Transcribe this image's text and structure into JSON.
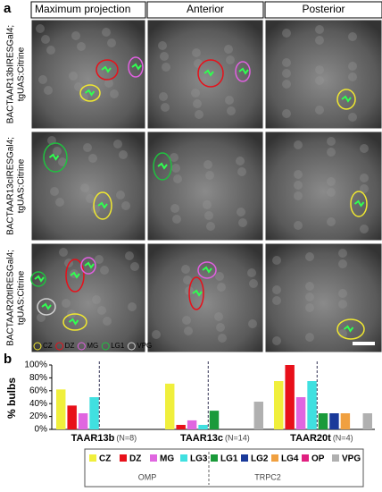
{
  "panel_a": {
    "label": "a",
    "columns": [
      "Maximum projection",
      "Anterior",
      "Posterior"
    ],
    "rows": [
      [
        "BACTAAR13bIRESGal4;",
        "tgUAS:Citrine"
      ],
      [
        "BACTAAR13cIRESGal4;",
        "tgUAS:Citrine"
      ],
      [
        "BACTAAR20tIRESGal4;",
        "tgUAS:Citrine"
      ]
    ],
    "legend": [
      {
        "label": "CZ",
        "color": "#f0e830"
      },
      {
        "label": "DZ",
        "color": "#e8101a"
      },
      {
        "label": "MG",
        "color": "#e060e0"
      },
      {
        "label": "LG1",
        "color": "#20c040"
      },
      {
        "label": "VPG",
        "color": "#d0d0d0"
      }
    ]
  },
  "chart_data": {
    "type": "bar",
    "label": "b",
    "ylabel": "% bulbs",
    "categories": [
      "TAAR13b",
      "TAAR13c",
      "TAAR20t"
    ],
    "category_notes": [
      "(N=8)",
      "(N=14)",
      "(N=4)"
    ],
    "ylim": [
      0,
      100
    ],
    "yticks": [
      {
        "value": 0,
        "label": "0%"
      },
      {
        "value": 20,
        "label": "20%"
      },
      {
        "value": 40,
        "label": "40%"
      },
      {
        "value": 60,
        "label": "60%"
      },
      {
        "value": 80,
        "label": "80%"
      },
      {
        "value": 100,
        "label": "100%"
      }
    ],
    "series": [
      {
        "name": "CZ",
        "color": "#f0ef3c",
        "values": [
          62,
          71,
          75
        ]
      },
      {
        "name": "DZ",
        "color": "#e8101a",
        "values": [
          37,
          7,
          100
        ]
      },
      {
        "name": "MG",
        "color": "#e066e0",
        "values": [
          25,
          14,
          50
        ]
      },
      {
        "name": "LG3",
        "color": "#40e0e0",
        "values": [
          50,
          7,
          75
        ]
      },
      {
        "name": "LG1",
        "color": "#1a9a3a",
        "values": [
          0,
          29,
          25
        ]
      },
      {
        "name": "LG2",
        "color": "#1a3a9a",
        "values": [
          0,
          0,
          25
        ]
      },
      {
        "name": "LG4",
        "color": "#f0a040",
        "values": [
          0,
          0,
          25
        ]
      },
      {
        "name": "OP",
        "color": "#e02080",
        "values": [
          0,
          0,
          0
        ]
      },
      {
        "name": "VPG",
        "color": "#b0b0b0",
        "values": [
          0,
          43,
          25
        ]
      }
    ],
    "legend_groups": [
      "OMP",
      "TRPC2"
    ]
  }
}
